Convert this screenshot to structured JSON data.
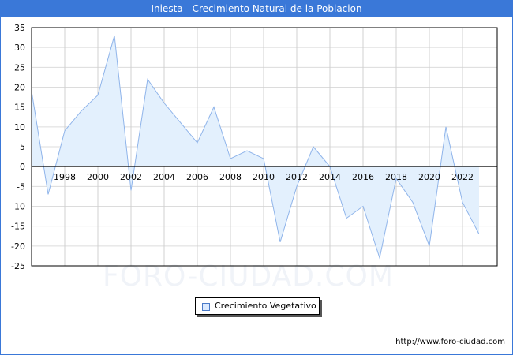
{
  "title": "Iniesta - Crecimiento Natural de la Poblacion",
  "watermark": "FORO-CIUDAD.COM",
  "footer_url": "http://www.foro-ciudad.com",
  "legend": {
    "label": "Crecimiento Vegetativo"
  },
  "colors": {
    "title_bg": "#3a78d8",
    "line": "#8fb4ea",
    "fill": "#e3f0fd"
  },
  "chart_data": {
    "type": "area",
    "title": "Iniesta - Crecimiento Natural de la Poblacion",
    "xlabel": "",
    "ylabel": "",
    "x": [
      1996,
      1997,
      1998,
      1999,
      2000,
      2001,
      2002,
      2003,
      2004,
      2005,
      2006,
      2007,
      2008,
      2009,
      2010,
      2011,
      2012,
      2013,
      2014,
      2015,
      2016,
      2017,
      2018,
      2019,
      2020,
      2021,
      2022,
      2023
    ],
    "series": [
      {
        "name": "Crecimiento Vegetativo",
        "values": [
          19,
          -7,
          9,
          14,
          18,
          33,
          -6,
          22,
          16,
          11,
          6,
          15,
          2,
          4,
          2,
          -19,
          -5,
          5,
          0,
          -13,
          -10,
          -23,
          -3,
          -9,
          -20,
          10,
          -9,
          -17
        ]
      }
    ],
    "x_tick_labels": [
      "1998",
      "2000",
      "2002",
      "2004",
      "2006",
      "2008",
      "2010",
      "2012",
      "2014",
      "2016",
      "2018",
      "2020",
      "2022"
    ],
    "y_tick_labels": [
      "35",
      "30",
      "25",
      "20",
      "15",
      "10",
      "5",
      "0",
      "-5",
      "-10",
      "-15",
      "-20",
      "-25"
    ],
    "ylim": [
      -25,
      35
    ],
    "grid": true,
    "legend_position": "bottom-center"
  }
}
